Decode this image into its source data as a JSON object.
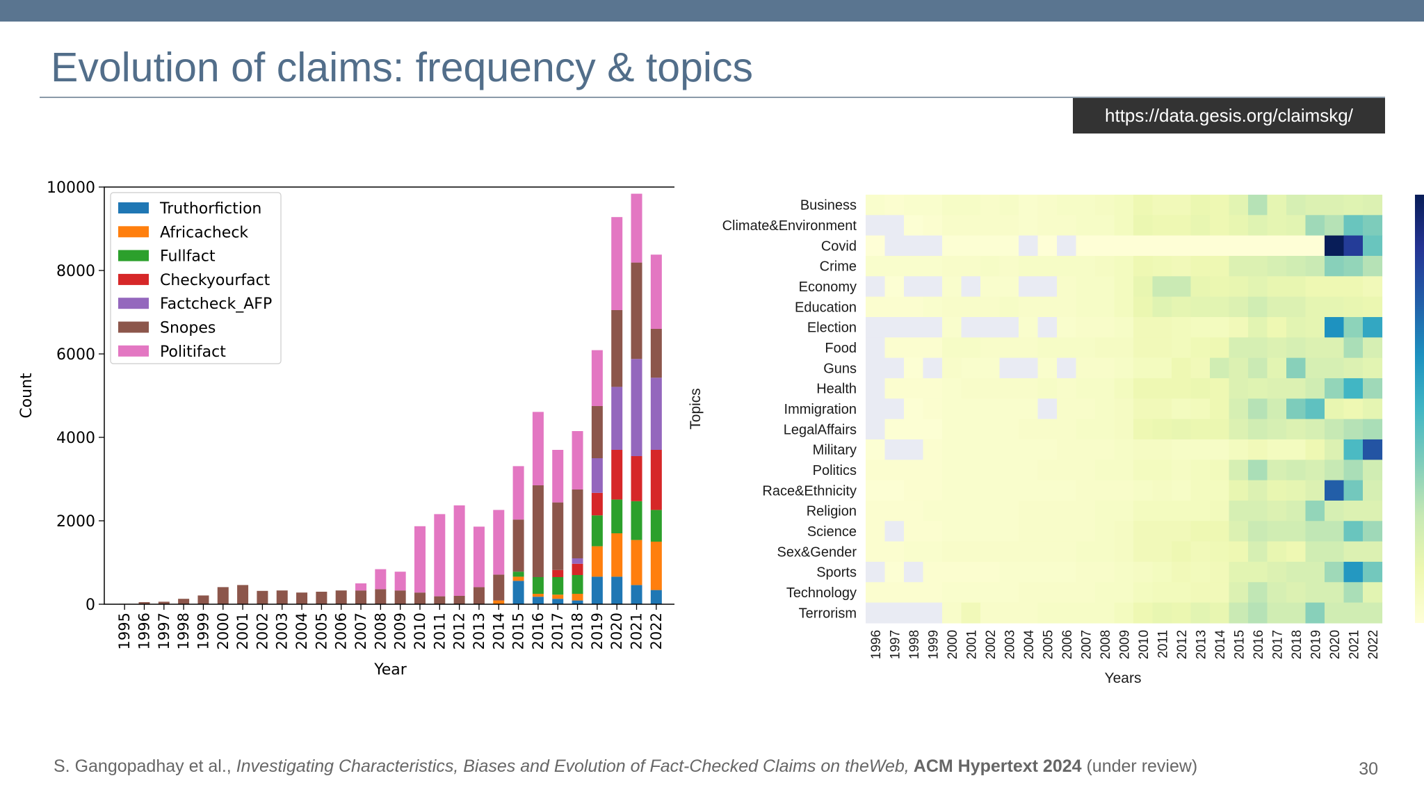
{
  "slide": {
    "title": "Evolution of claims: frequency & topics",
    "url": "https://data.gesis.org/claimskg/",
    "citation": {
      "authors": "S. Gangopadhay et al., ",
      "paper": "Investigating Characteristics, Biases and Evolution of Fact-Checked Claims on theWeb,",
      "venue": " ACM Hypertext 2024",
      "status": " (under review)"
    },
    "page_number": "30"
  },
  "chart_data": [
    {
      "type": "bar",
      "stacked": true,
      "title": "",
      "xlabel": "Year",
      "ylabel": "Count",
      "ylim": [
        0,
        10000
      ],
      "yticks": [
        0,
        2000,
        4000,
        6000,
        8000,
        10000
      ],
      "legend_position": "top-left",
      "grid": false,
      "categories": [
        "1995",
        "1996",
        "1997",
        "1998",
        "1999",
        "2000",
        "2001",
        "2002",
        "2003",
        "2004",
        "2005",
        "2006",
        "2007",
        "2008",
        "2009",
        "2010",
        "2011",
        "2012",
        "2013",
        "2014",
        "2015",
        "2016",
        "2017",
        "2018",
        "2019",
        "2020",
        "2021",
        "2022"
      ],
      "series": [
        {
          "name": "Truthorfiction",
          "color": "#1f77b4",
          "values": [
            0,
            0,
            0,
            0,
            0,
            0,
            0,
            0,
            0,
            0,
            0,
            0,
            0,
            0,
            0,
            0,
            0,
            0,
            0,
            0,
            560,
            180,
            130,
            90,
            660,
            660,
            460,
            340
          ]
        },
        {
          "name": "Africacheck",
          "color": "#ff7f0e",
          "values": [
            0,
            0,
            0,
            0,
            0,
            0,
            0,
            0,
            0,
            0,
            0,
            0,
            0,
            0,
            0,
            0,
            0,
            0,
            0,
            90,
            100,
            70,
            100,
            160,
            730,
            1040,
            1080,
            1160
          ]
        },
        {
          "name": "Fullfact",
          "color": "#2ca02c",
          "values": [
            0,
            0,
            0,
            0,
            0,
            0,
            0,
            0,
            0,
            0,
            0,
            0,
            0,
            0,
            0,
            0,
            0,
            0,
            0,
            0,
            120,
            400,
            420,
            450,
            740,
            810,
            930,
            760
          ]
        },
        {
          "name": "Checkyourfact",
          "color": "#d62728",
          "values": [
            0,
            0,
            0,
            0,
            0,
            0,
            0,
            0,
            0,
            0,
            0,
            0,
            0,
            0,
            0,
            0,
            0,
            0,
            0,
            0,
            0,
            0,
            170,
            270,
            540,
            1190,
            1080,
            1440
          ]
        },
        {
          "name": "Factcheck_AFP",
          "color": "#9467bd",
          "values": [
            0,
            0,
            0,
            0,
            0,
            0,
            0,
            0,
            0,
            0,
            0,
            0,
            0,
            0,
            0,
            0,
            0,
            0,
            0,
            0,
            0,
            0,
            0,
            130,
            830,
            1510,
            2330,
            1730
          ]
        },
        {
          "name": "Snopes",
          "color": "#8c564b",
          "values": [
            10,
            50,
            60,
            130,
            210,
            410,
            460,
            320,
            330,
            280,
            300,
            330,
            330,
            360,
            330,
            280,
            190,
            200,
            410,
            620,
            1250,
            2200,
            1620,
            1650,
            1250,
            1840,
            2310,
            1170
          ]
        },
        {
          "name": "Politifact",
          "color": "#e377c2",
          "values": [
            0,
            0,
            0,
            0,
            0,
            0,
            0,
            0,
            0,
            0,
            0,
            0,
            170,
            480,
            450,
            1590,
            1970,
            2170,
            1450,
            1550,
            1280,
            1760,
            1260,
            1400,
            1340,
            2230,
            1650,
            1780
          ]
        }
      ]
    },
    {
      "type": "heatmap",
      "title": "",
      "xlabel": "Years",
      "ylabel": "Topics",
      "x": [
        "1996",
        "1997",
        "1998",
        "1999",
        "2000",
        "2001",
        "2002",
        "2003",
        "2004",
        "2005",
        "2006",
        "2007",
        "2008",
        "2009",
        "2010",
        "2011",
        "2012",
        "2013",
        "2014",
        "2015",
        "2016",
        "2017",
        "2018",
        "2019",
        "2020",
        "2021",
        "2022"
      ],
      "y": [
        "Business",
        "Climate&Environment",
        "Covid",
        "Crime",
        "Economy",
        "Education",
        "Election",
        "Food",
        "Guns",
        "Health",
        "Immigration",
        "LegalAffairs",
        "Military",
        "Politics",
        "Race&Ethnicity",
        "Religion",
        "Science",
        "Sex&Gender",
        "Sports",
        "Technology",
        "Terrorism"
      ],
      "colormap": "YlGnBu",
      "missing_color": "#e9ebf3",
      "values": [
        [
          0.04,
          0.03,
          0.04,
          0.04,
          0.06,
          0.06,
          0.05,
          0.06,
          0.04,
          0.05,
          0.06,
          0.06,
          0.07,
          0.08,
          0.12,
          0.1,
          0.1,
          0.13,
          0.12,
          0.16,
          0.28,
          0.15,
          0.2,
          0.18,
          0.18,
          0.17,
          0.18
        ],
        [
          null,
          null,
          0.02,
          0.03,
          0.05,
          0.05,
          0.05,
          0.05,
          0.04,
          0.05,
          0.05,
          0.06,
          0.06,
          0.08,
          0.13,
          0.12,
          0.12,
          0.14,
          0.12,
          0.14,
          0.17,
          0.15,
          0.16,
          0.32,
          0.28,
          0.42,
          0.38
        ],
        [
          0.01,
          null,
          null,
          null,
          0.02,
          0.02,
          0.02,
          0.02,
          null,
          0.01,
          null,
          0.01,
          0.01,
          0.01,
          0.01,
          0.01,
          0.01,
          0.01,
          0.01,
          0.01,
          0.01,
          0.01,
          0.01,
          0.01,
          1.0,
          0.85,
          0.42
        ],
        [
          0.04,
          0.04,
          0.04,
          0.04,
          0.05,
          0.05,
          0.06,
          0.05,
          0.06,
          0.06,
          0.06,
          0.06,
          0.07,
          0.08,
          0.12,
          0.11,
          0.1,
          0.12,
          0.12,
          0.18,
          0.18,
          0.2,
          0.22,
          0.24,
          0.36,
          0.34,
          0.28
        ],
        [
          null,
          0.02,
          null,
          null,
          0.04,
          null,
          0.04,
          0.04,
          null,
          null,
          0.05,
          0.06,
          0.06,
          0.08,
          0.14,
          0.24,
          0.24,
          0.14,
          0.13,
          0.14,
          0.16,
          0.14,
          0.14,
          0.12,
          0.12,
          0.12,
          0.1
        ],
        [
          0.03,
          0.03,
          0.03,
          0.04,
          0.05,
          0.05,
          0.05,
          0.06,
          0.05,
          0.05,
          0.05,
          0.06,
          0.06,
          0.08,
          0.13,
          0.17,
          0.15,
          0.16,
          0.16,
          0.18,
          0.22,
          0.18,
          0.18,
          0.15,
          0.15,
          0.14,
          0.13
        ],
        [
          null,
          null,
          null,
          null,
          0.04,
          null,
          null,
          null,
          0.04,
          null,
          0.04,
          0.05,
          0.05,
          0.06,
          0.1,
          0.1,
          0.09,
          0.08,
          0.08,
          0.1,
          0.16,
          0.12,
          0.16,
          0.15,
          0.62,
          0.35,
          0.55
        ],
        [
          null,
          0.03,
          0.03,
          0.03,
          0.06,
          0.06,
          0.05,
          0.05,
          0.05,
          0.06,
          0.06,
          0.06,
          0.07,
          0.07,
          0.1,
          0.1,
          0.09,
          0.11,
          0.12,
          0.2,
          0.2,
          0.18,
          0.2,
          0.18,
          0.18,
          0.3,
          0.2
        ],
        [
          null,
          null,
          0.02,
          null,
          0.05,
          0.04,
          0.04,
          null,
          null,
          0.04,
          null,
          0.05,
          0.05,
          0.06,
          0.08,
          0.08,
          0.12,
          0.1,
          0.22,
          0.18,
          0.24,
          0.16,
          0.36,
          0.2,
          0.2,
          0.18,
          0.16
        ],
        [
          null,
          0.03,
          0.03,
          0.03,
          0.04,
          0.05,
          0.05,
          0.05,
          0.05,
          0.06,
          0.05,
          0.06,
          0.06,
          0.08,
          0.12,
          0.12,
          0.12,
          0.13,
          0.12,
          0.18,
          0.17,
          0.18,
          0.18,
          0.22,
          0.34,
          0.5,
          0.32
        ],
        [
          null,
          null,
          0.02,
          0.03,
          0.04,
          0.04,
          0.04,
          0.04,
          0.04,
          null,
          0.05,
          0.05,
          0.06,
          0.07,
          0.1,
          0.1,
          0.08,
          0.09,
          0.12,
          0.2,
          0.28,
          0.22,
          0.38,
          0.44,
          0.14,
          0.12,
          0.15
        ],
        [
          null,
          0.02,
          0.02,
          0.02,
          0.04,
          0.04,
          0.04,
          0.04,
          0.05,
          0.05,
          0.05,
          0.06,
          0.06,
          0.07,
          0.12,
          0.13,
          0.14,
          0.13,
          0.13,
          0.18,
          0.22,
          0.2,
          0.18,
          0.2,
          0.25,
          0.28,
          0.3
        ],
        [
          0.02,
          null,
          null,
          0.03,
          0.04,
          0.04,
          0.04,
          0.04,
          0.04,
          0.04,
          0.05,
          0.05,
          0.05,
          0.06,
          0.07,
          0.07,
          0.06,
          0.06,
          0.06,
          0.08,
          0.1,
          0.08,
          0.08,
          0.12,
          0.18,
          0.48,
          0.78
        ],
        [
          0.03,
          0.03,
          0.03,
          0.03,
          0.04,
          0.04,
          0.04,
          0.04,
          0.04,
          0.05,
          0.05,
          0.05,
          0.06,
          0.06,
          0.08,
          0.08,
          0.07,
          0.08,
          0.09,
          0.2,
          0.3,
          0.2,
          0.22,
          0.2,
          0.25,
          0.3,
          0.22
        ],
        [
          0.02,
          0.02,
          0.03,
          0.03,
          0.04,
          0.04,
          0.04,
          0.04,
          0.04,
          0.04,
          0.04,
          0.05,
          0.05,
          0.05,
          0.06,
          0.07,
          0.06,
          0.08,
          0.08,
          0.14,
          0.18,
          0.14,
          0.15,
          0.18,
          0.75,
          0.4,
          0.2
        ],
        [
          0.03,
          0.03,
          0.03,
          0.04,
          0.04,
          0.04,
          0.04,
          0.04,
          0.05,
          0.05,
          0.05,
          0.05,
          0.06,
          0.06,
          0.08,
          0.08,
          0.08,
          0.08,
          0.09,
          0.2,
          0.2,
          0.18,
          0.2,
          0.34,
          0.2,
          0.18,
          0.18
        ],
        [
          0.03,
          null,
          0.03,
          0.03,
          0.04,
          0.04,
          0.04,
          0.04,
          0.05,
          0.05,
          0.05,
          0.05,
          0.06,
          0.07,
          0.1,
          0.1,
          0.1,
          0.12,
          0.12,
          0.18,
          0.24,
          0.22,
          0.22,
          0.26,
          0.26,
          0.42,
          0.32
        ],
        [
          0.03,
          0.03,
          0.04,
          0.04,
          0.05,
          0.05,
          0.05,
          0.05,
          0.05,
          0.05,
          0.05,
          0.06,
          0.06,
          0.07,
          0.1,
          0.1,
          0.12,
          0.1,
          0.11,
          0.12,
          0.2,
          0.14,
          0.12,
          0.22,
          0.22,
          0.18,
          0.18
        ],
        [
          null,
          0.02,
          null,
          0.03,
          0.03,
          0.03,
          0.03,
          0.04,
          0.04,
          0.04,
          0.04,
          0.05,
          0.05,
          0.06,
          0.07,
          0.08,
          0.1,
          0.09,
          0.1,
          0.16,
          0.16,
          0.18,
          0.2,
          0.2,
          0.32,
          0.6,
          0.4
        ],
        [
          0.03,
          0.03,
          0.03,
          0.03,
          0.04,
          0.04,
          0.04,
          0.04,
          0.05,
          0.05,
          0.05,
          0.05,
          0.06,
          0.06,
          0.08,
          0.09,
          0.09,
          0.1,
          0.1,
          0.18,
          0.26,
          0.2,
          0.18,
          0.2,
          0.2,
          0.3,
          0.16
        ],
        [
          null,
          null,
          null,
          null,
          0.05,
          0.1,
          0.05,
          0.05,
          0.05,
          0.06,
          0.06,
          0.06,
          0.06,
          0.08,
          0.12,
          0.14,
          0.13,
          0.16,
          0.14,
          0.24,
          0.28,
          0.22,
          0.22,
          0.36,
          0.22,
          0.22,
          0.22
        ]
      ]
    }
  ]
}
